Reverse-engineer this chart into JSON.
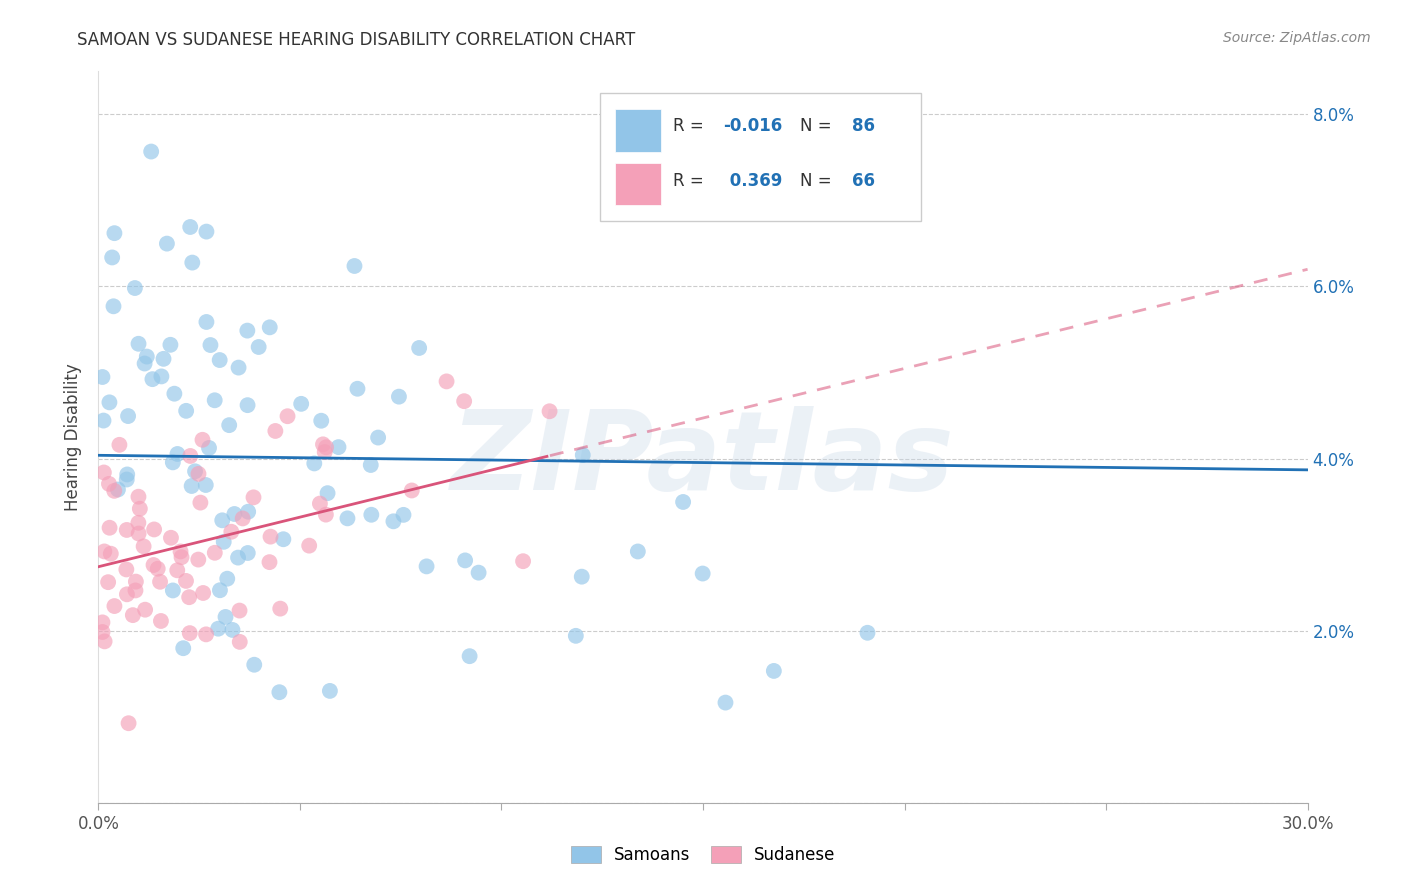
{
  "title": "SAMOAN VS SUDANESE HEARING DISABILITY CORRELATION CHART",
  "source": "Source: ZipAtlas.com",
  "ylabel": "Hearing Disability",
  "xlim": [
    0.0,
    0.3
  ],
  "ylim": [
    0.0,
    0.085
  ],
  "r_samoan": -0.016,
  "n_samoan": 86,
  "r_sudanese": 0.369,
  "n_sudanese": 66,
  "samoan_color": "#92C5E8",
  "sudanese_color": "#F4A0B8",
  "samoan_line_color": "#2171B5",
  "sudanese_line_color": "#D9547A",
  "number_color": "#2171B5",
  "background_color": "#FFFFFF",
  "grid_color": "#CCCCCC",
  "watermark": "ZIPatlas",
  "watermark_color": "#C8D8E8"
}
